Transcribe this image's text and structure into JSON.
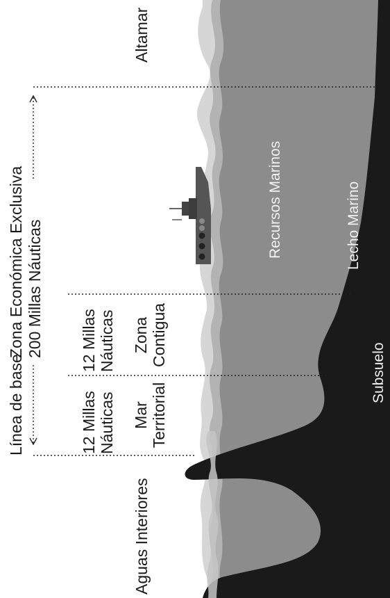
{
  "labels": {
    "linea_base": "Línea de base",
    "zee_line1": "Zona Económica Exclusiva",
    "zee_line2": "200 Millas Náuticas",
    "mt_miles_1": "12 Millas",
    "mt_miles_2": "Náuticas",
    "zc_miles_1": "12 Millas",
    "zc_miles_2": "Náuticas",
    "mar_territorial_1": "Mar",
    "mar_territorial_2": "Territorial",
    "zona_contigua_1": "Zona",
    "zona_contigua_2": "Contigua",
    "aguas_interiores": "Aguas Interiores",
    "altamar": "Altamar",
    "recursos_marinos": "Recursos Marinos",
    "lecho_marino": "Lecho Marino",
    "subsuelo": "Subsuelo"
  },
  "colors": {
    "background": "#ffffff",
    "sea_deep": "#8c8c8c",
    "sea_mid": "#b3b3b3",
    "sea_light": "#d6d6d6",
    "seabed": "#1a1a1a",
    "text_dark": "#1a1a1a",
    "text_light": "#f2f2f2"
  }
}
